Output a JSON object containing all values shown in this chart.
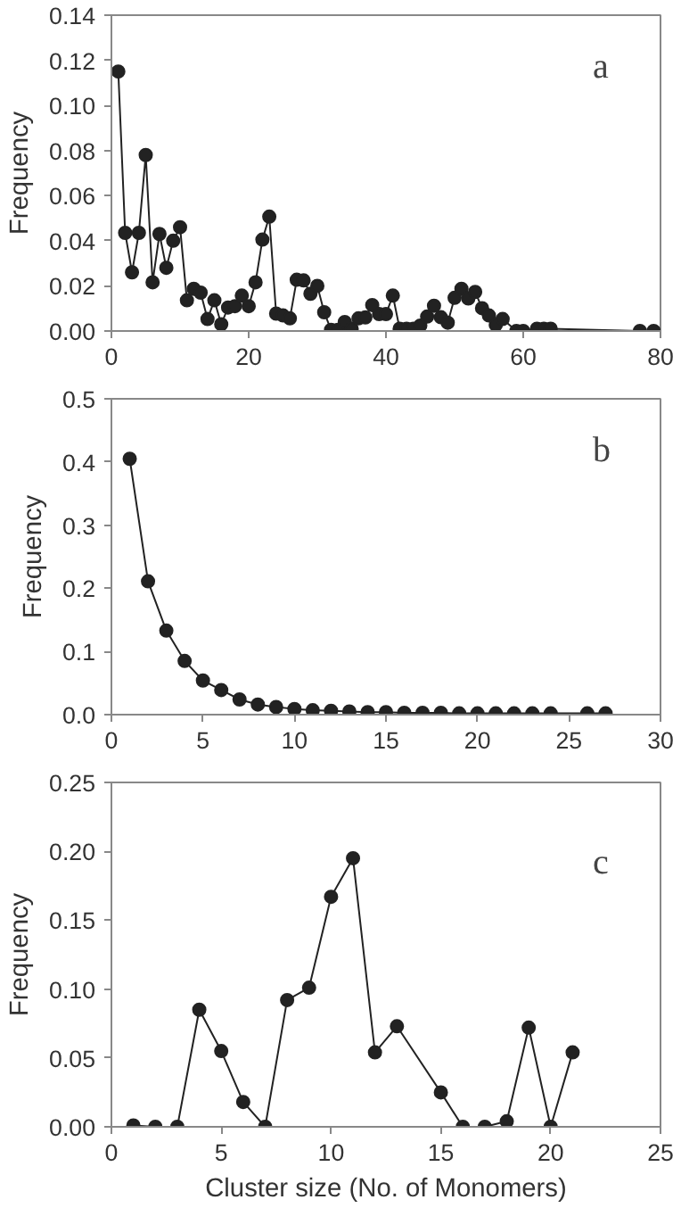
{
  "chart_data": [
    {
      "type": "line",
      "ylabel": "Frequency",
      "annotations": [
        "a"
      ],
      "marker": "circle",
      "line_style": "solid",
      "grid": false,
      "x": [
        1,
        2,
        3,
        4,
        5,
        6,
        7,
        8,
        9,
        10,
        11,
        12,
        13,
        14,
        15,
        16,
        17,
        18,
        19,
        20,
        21,
        22,
        23,
        24,
        25,
        26,
        27,
        28,
        29,
        30,
        31,
        32,
        33,
        34,
        35,
        36,
        37,
        38,
        39,
        40,
        41,
        42,
        43,
        44,
        45,
        46,
        47,
        48,
        49,
        50,
        51,
        52,
        53,
        54,
        55,
        56,
        57,
        59,
        60,
        62,
        63,
        64,
        77,
        79
      ],
      "series": [
        {
          "color": "#222222",
          "values": [
            0.115,
            0.0435,
            0.026,
            0.0435,
            0.078,
            0.0216,
            0.043,
            0.028,
            0.04,
            0.046,
            0.0136,
            0.0187,
            0.017,
            0.0053,
            0.0136,
            0.003,
            0.0104,
            0.011,
            0.0157,
            0.011,
            0.0216,
            0.0405,
            0.0507,
            0.0077,
            0.0069,
            0.0056,
            0.0227,
            0.0224,
            0.0165,
            0.02,
            0.0083,
            0.0005,
            0.0005,
            0.004,
            0.001,
            0.0056,
            0.006,
            0.0115,
            0.0075,
            0.0075,
            0.0157,
            0.001,
            0.001,
            0.001,
            0.0024,
            0.0064,
            0.0112,
            0.0061,
            0.0037,
            0.0147,
            0.0187,
            0.0144,
            0.0173,
            0.0101,
            0.0069,
            0.0027,
            0.0053,
            0.0,
            0.0,
            0.001,
            0.001,
            0.001,
            0.0,
            0.0
          ]
        }
      ],
      "xlim": [
        0,
        80
      ],
      "xticks": [
        0,
        20,
        40,
        60,
        80
      ],
      "ylim": [
        0,
        0.14
      ],
      "yticks": [
        {
          "value": 0,
          "label": "0.00"
        },
        {
          "value": 0.02,
          "label": "0.02"
        },
        {
          "value": 0.04,
          "label": "0.04"
        },
        {
          "value": 0.06,
          "label": "0.06"
        },
        {
          "value": 0.08,
          "label": "0.08"
        },
        {
          "value": 0.1,
          "label": "0.10"
        },
        {
          "value": 0.12,
          "label": "0.12"
        },
        {
          "value": 0.14,
          "label": "0.14"
        }
      ]
    },
    {
      "type": "line",
      "ylabel": "Frequency",
      "annotations": [
        "b"
      ],
      "marker": "circle",
      "line_style": "solid",
      "grid": false,
      "x": [
        1,
        2,
        3,
        4,
        5,
        6,
        7,
        8,
        9,
        10,
        11,
        12,
        13,
        14,
        15,
        16,
        17,
        18,
        19,
        20,
        21,
        22,
        23,
        24,
        26,
        27
      ],
      "series": [
        {
          "color": "#222222",
          "values": [
            0.405,
            0.211,
            0.133,
            0.085,
            0.054,
            0.039,
            0.024,
            0.016,
            0.012,
            0.009,
            0.007,
            0.006,
            0.005,
            0.004,
            0.004,
            0.003,
            0.003,
            0.003,
            0.002,
            0.002,
            0.002,
            0.002,
            0.002,
            0.002,
            0.002,
            0.002
          ]
        }
      ],
      "xlim": [
        0,
        30
      ],
      "xticks": [
        0,
        5,
        10,
        15,
        20,
        25,
        30
      ],
      "ylim": [
        0,
        0.5
      ],
      "yticks": [
        {
          "value": 0,
          "label": "0.0"
        },
        {
          "value": 0.1,
          "label": "0.1"
        },
        {
          "value": 0.2,
          "label": "0.2"
        },
        {
          "value": 0.3,
          "label": "0.3"
        },
        {
          "value": 0.4,
          "label": "0.4"
        },
        {
          "value": 0.5,
          "label": "0.5"
        }
      ]
    },
    {
      "type": "line",
      "xlabel": "Cluster size (No. of Monomers)",
      "ylabel": "Frequency",
      "annotations": [
        "c"
      ],
      "marker": "circle",
      "line_style": "solid",
      "grid": false,
      "x": [
        1,
        2,
        3,
        4,
        5,
        6,
        7,
        8,
        9,
        10,
        11,
        12,
        13,
        15,
        16,
        17,
        18,
        19,
        20,
        21
      ],
      "series": [
        {
          "color": "#222222",
          "values": [
            0.001,
            0,
            0,
            0.085,
            0.055,
            0.018,
            0,
            0.092,
            0.101,
            0.167,
            0.195,
            0.054,
            0.073,
            0.025,
            0,
            0,
            0.004,
            0.072,
            0,
            0.054
          ]
        }
      ],
      "xlim": [
        0,
        25
      ],
      "xticks": [
        0,
        5,
        10,
        15,
        20,
        25
      ],
      "ylim": [
        0,
        0.25
      ],
      "yticks": [
        {
          "value": 0,
          "label": "0.00"
        },
        {
          "value": 0.05,
          "label": "0.05"
        },
        {
          "value": 0.1,
          "label": "0.10"
        },
        {
          "value": 0.15,
          "label": "0.15"
        },
        {
          "value": 0.2,
          "label": "0.20"
        },
        {
          "value": 0.25,
          "label": "0.25"
        }
      ]
    }
  ]
}
